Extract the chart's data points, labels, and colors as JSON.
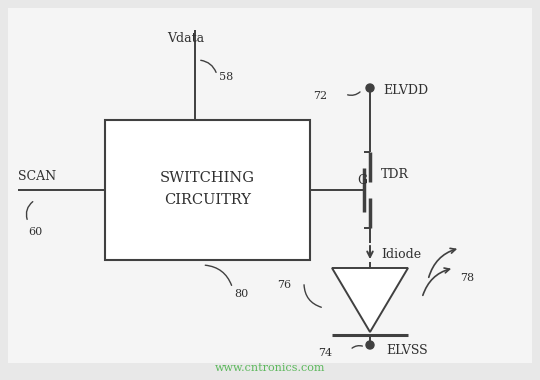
{
  "bg_color": "#e8e8e8",
  "inner_bg": "#f5f5f5",
  "line_color": "#404040",
  "text_color": "#303030",
  "watermark_color": "#5cb85c",
  "watermark": "www.cntronics.com",
  "box_label1": "SWITCHING",
  "box_label2": "CIRCUITRY",
  "scan_label": "SCAN",
  "scan_ref": "60",
  "vdata_label": "Vdata",
  "vdata_ref": "58",
  "box_ref": "80",
  "elvdd_label": "ELVDD",
  "elvdd_ref": "72",
  "elvss_label": "ELVSS",
  "elvss_ref": "74",
  "tdr_label": "TDR",
  "g_label": "G",
  "idiode_label": "Idiode",
  "led_ref": "76",
  "light_ref": "78"
}
